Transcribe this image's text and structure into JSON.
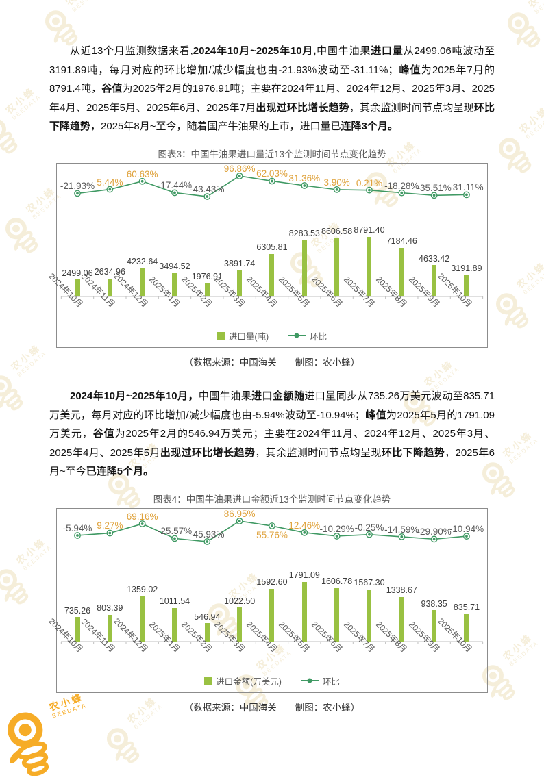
{
  "watermark": {
    "brand": "农小蜂",
    "sub": "BEEDATA"
  },
  "colors": {
    "bar": "#99c142",
    "line": "#3f9963",
    "positive_label": "#dfa23b",
    "negative_label": "#595959",
    "bar_label": "#3d3d3d",
    "axis": "#bfbfbf",
    "frame_border": "#8c8c8c",
    "title": "#595959",
    "watermark": "#efe3c2",
    "watermark_accent": "#f6a81c"
  },
  "document": {
    "paragraphs": [
      {
        "name": "import-volume-analysis",
        "segments": [
          {
            "t": "从近13个月监测数据来看,"
          },
          {
            "b": 1,
            "t": "2024年10月~2025年10月,"
          },
          {
            "t": "中国牛油果"
          },
          {
            "b": 1,
            "t": "进口量"
          },
          {
            "t": "从2499.06吨波动至3191.89吨，每月对应的环比增加/减少幅度也由-21.93%波动至-31.11%；"
          },
          {
            "b": 1,
            "t": "峰值"
          },
          {
            "t": "为2025年7月的8791.4吨，"
          },
          {
            "b": 1,
            "t": "谷值"
          },
          {
            "t": "为2025年2月的1976.91吨；主要在2024年11月、2024年12月、2025年3月、2025年4月、2025年5月、2025年6月、2025年7月"
          },
          {
            "b": 1,
            "t": "出现过环比增长趋势"
          },
          {
            "t": "，其余监测时间节点均呈现"
          },
          {
            "b": 1,
            "t": "环比下降趋势"
          },
          {
            "t": "，2025年8月~至今，随着国产牛油果的上市，进口量已"
          },
          {
            "b": 1,
            "t": "连降3个月。"
          }
        ]
      },
      {
        "name": "import-value-analysis",
        "segments": [
          {
            "b": 1,
            "t": "2024年10月~2025年10月，"
          },
          {
            "t": "中国牛油果"
          },
          {
            "b": 1,
            "t": "进口金额随"
          },
          {
            "t": "进口量同步从735.26万美元波动至835.71万美元，每月对应的环比增加/减少幅度也由-5.94%波动至-10.94%；"
          },
          {
            "b": 1,
            "t": "峰值"
          },
          {
            "t": "为2025年5月的1791.09万美元，"
          },
          {
            "b": 1,
            "t": "谷值"
          },
          {
            "t": "为2025年2月的546.94万美元；主要在2024年11月、2024年12月、2025年3月、2025年4月、2025年5月"
          },
          {
            "b": 1,
            "t": "出现过环比增长趋势"
          },
          {
            "t": "，其余监测时间节点均呈现"
          },
          {
            "b": 1,
            "t": "环比下降趋势"
          },
          {
            "t": "，2025年6月~至今"
          },
          {
            "b": 1,
            "t": "已连降5个月。"
          }
        ]
      }
    ]
  },
  "chart_data": [
    {
      "type": "bar",
      "title": "图表3：中国牛油果进口量近13个监测时间节点变化趋势",
      "categories": [
        "2024年10月",
        "2024年11月",
        "2024年12月",
        "2025年1月",
        "2025年2月",
        "2025年3月",
        "2025年4月",
        "2025年5月",
        "2025年6月",
        "2025年7月",
        "2025年8月",
        "2025年9月",
        "2025年10月"
      ],
      "series": [
        {
          "name": "进口量(吨)",
          "type": "bar",
          "values": [
            2499.06,
            2634.96,
            4232.64,
            3494.52,
            1976.91,
            3891.74,
            6305.81,
            8283.53,
            8606.58,
            8791.4,
            7184.46,
            4633.42,
            3191.89
          ]
        },
        {
          "name": "环比",
          "type": "line",
          "unit": "%",
          "values": [
            -21.93,
            5.44,
            60.63,
            -17.44,
            -43.43,
            96.86,
            62.03,
            31.36,
            3.9,
            0.21,
            -18.28,
            -35.51,
            -31.11
          ]
        }
      ],
      "legend_position": "bottom",
      "grid": false,
      "line_label_below_indices": [],
      "source_note": "（数据来源：中国海关　　制图：农小蜂）"
    },
    {
      "type": "bar",
      "title": "图表4：中国牛油果进口金额近13个监测时间节点变化趋势",
      "categories": [
        "2024年10月",
        "2024年11月",
        "2024年12月",
        "2025年1月",
        "2025年2月",
        "2025年3月",
        "2025年4月",
        "2025年5月",
        "2025年6月",
        "2025年7月",
        "2025年8月",
        "2025年9月",
        "2025年10月"
      ],
      "series": [
        {
          "name": "进口金额(万美元)",
          "type": "bar",
          "values": [
            735.26,
            803.39,
            1359.02,
            1011.54,
            546.94,
            1022.5,
            1592.6,
            1791.09,
            1606.78,
            1567.3,
            1338.67,
            938.35,
            835.71
          ]
        },
        {
          "name": "环比",
          "type": "line",
          "unit": "%",
          "values": [
            -5.94,
            9.27,
            69.16,
            -25.57,
            -45.93,
            86.95,
            55.76,
            12.46,
            -10.29,
            -0.25,
            -14.59,
            -29.9,
            -10.94
          ]
        }
      ],
      "legend_position": "bottom",
      "grid": false,
      "line_label_below_indices": [
        6
      ],
      "source_note": "（数据来源：中国海关　　制图：农小蜂）"
    }
  ]
}
